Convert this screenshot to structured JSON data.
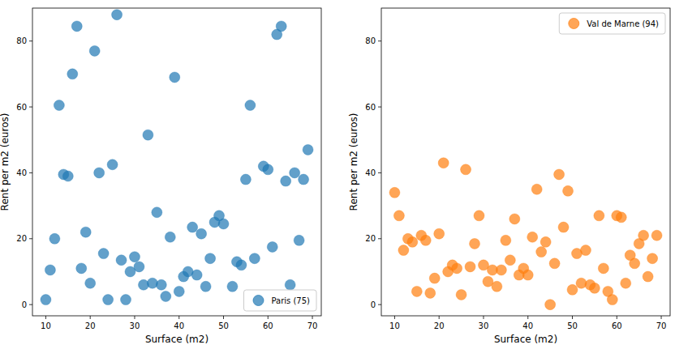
{
  "chart_data": [
    {
      "type": "scatter",
      "x_label": "Surface (m2)",
      "y_label": "Rent per m2 (euros)",
      "x": [
        10,
        11,
        12,
        13,
        14,
        15,
        16,
        17,
        18,
        19,
        20,
        21,
        22,
        23,
        24,
        25,
        26,
        27,
        28,
        29,
        30,
        31,
        32,
        33,
        34,
        35,
        36,
        37,
        38,
        39,
        40,
        41,
        42,
        43,
        44,
        45,
        46,
        47,
        48,
        49,
        50,
        52,
        53,
        54,
        55,
        56,
        57,
        59,
        60,
        61,
        62,
        63,
        64,
        65,
        66,
        67,
        68,
        69
      ],
      "series": [
        {
          "name": "Paris (75)",
          "color": "#1f77b4",
          "values": [
            1.5,
            10.5,
            20,
            60.5,
            39.5,
            39,
            70,
            84.5,
            11,
            22,
            6.5,
            77,
            40,
            15.5,
            1.5,
            42.5,
            88,
            13.5,
            1.5,
            10,
            14.5,
            11.5,
            6,
            51.5,
            6.5,
            28,
            6,
            2.5,
            20.5,
            69,
            4,
            8.5,
            10,
            23.5,
            9,
            21.5,
            5.5,
            14,
            25,
            27,
            24.5,
            5.5,
            13,
            12,
            38,
            60.5,
            14,
            42,
            41,
            17.5,
            82,
            84.5,
            37.5,
            6,
            40,
            19.5,
            38,
            47
          ]
        }
      ],
      "xlim": [
        7,
        72
      ],
      "ylim": [
        -3.4,
        90
      ],
      "xticks": [
        10,
        20,
        30,
        40,
        50,
        60,
        70
      ],
      "yticks": [
        0,
        20,
        40,
        60,
        80
      ],
      "legend": "lower right"
    },
    {
      "type": "scatter",
      "x_label": "Surface (m2)",
      "y_label": "Rent per m2 (euros)",
      "x": [
        10,
        11,
        12,
        13,
        14,
        15,
        16,
        17,
        18,
        19,
        20,
        21,
        22,
        23,
        24,
        25,
        26,
        27,
        28,
        29,
        30,
        31,
        32,
        33,
        34,
        35,
        36,
        37,
        38,
        39,
        40,
        41,
        42,
        43,
        44,
        45,
        46,
        47,
        48,
        49,
        50,
        51,
        52,
        53,
        54,
        55,
        56,
        57,
        58,
        59,
        60,
        61,
        62,
        63,
        64,
        65,
        66,
        67,
        68,
        69
      ],
      "series": [
        {
          "name": "Val de Marne (94)",
          "color": "#ff7f0e",
          "values": [
            34,
            27,
            16.5,
            20,
            19,
            4,
            21,
            19.5,
            3.5,
            8,
            21.5,
            43,
            10,
            12,
            11,
            3,
            41,
            11.5,
            18.5,
            27,
            12,
            7,
            10.5,
            5.5,
            10.5,
            19.5,
            13.5,
            26,
            9,
            11,
            9,
            20.5,
            35,
            16,
            19,
            0,
            12.5,
            39.5,
            23.5,
            34.5,
            4.5,
            15.5,
            6.5,
            16.5,
            6,
            5,
            27,
            11,
            4,
            1.5,
            27,
            26.5,
            6.5,
            15,
            12.5,
            18.5,
            21,
            8.5,
            14,
            21
          ]
        }
      ],
      "xlim": [
        7,
        72
      ],
      "ylim": [
        -3.4,
        90
      ],
      "xticks": [
        10,
        20,
        30,
        40,
        50,
        60,
        70
      ],
      "yticks": [
        0,
        20,
        40,
        60,
        80
      ],
      "legend": "upper right"
    }
  ]
}
